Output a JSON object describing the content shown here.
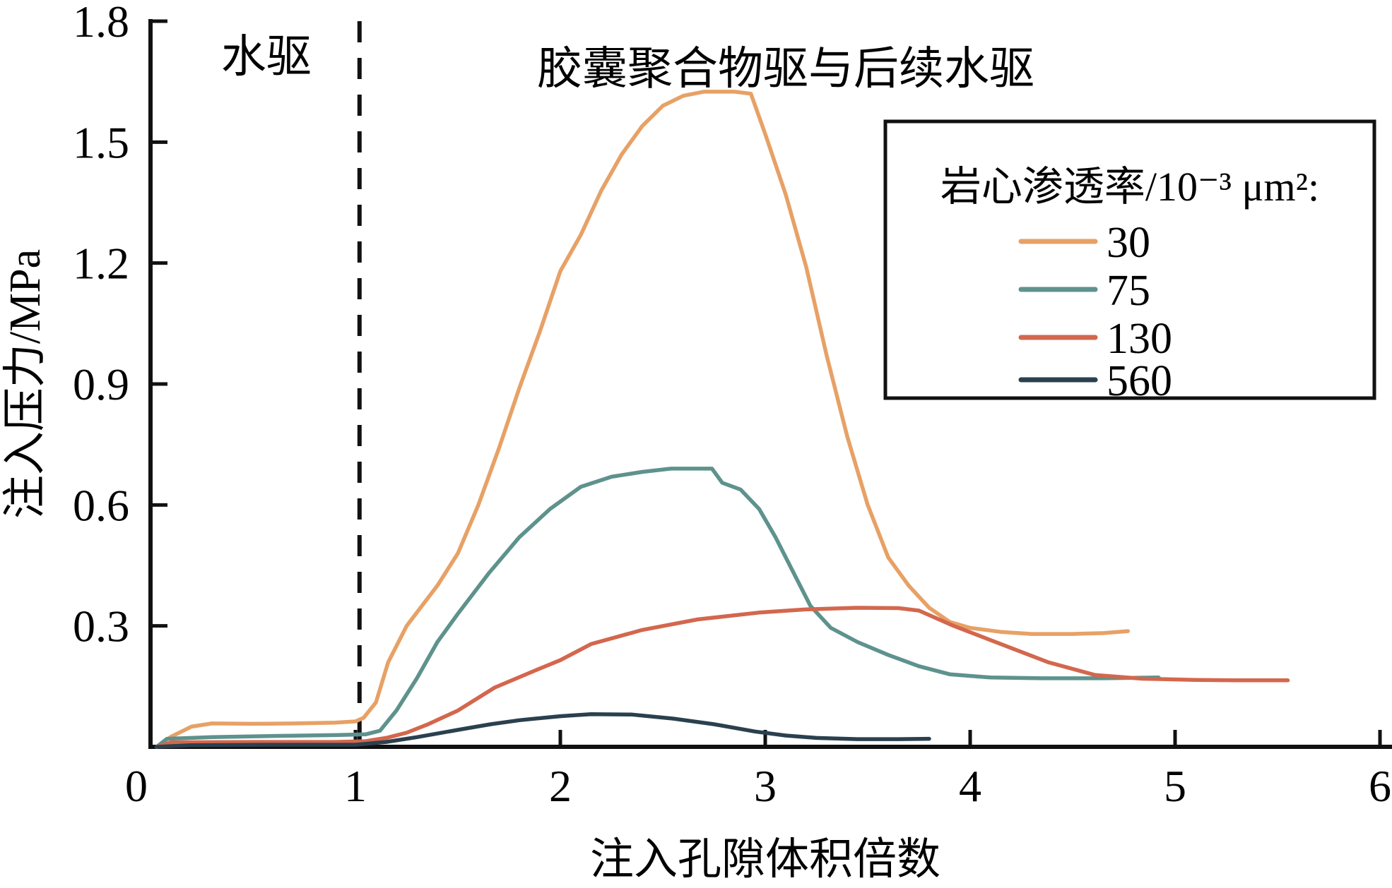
{
  "figure": {
    "background": "#ffffff",
    "axis_color": "#111111"
  },
  "chart_data": {
    "type": "line",
    "title": "",
    "xlabel": "注入孔隙体积倍数",
    "ylabel": "注入压力/MPa",
    "xlim": [
      0,
      6
    ],
    "ylim": [
      0,
      1.8
    ],
    "xticks": [
      0,
      1,
      2,
      3,
      4,
      5,
      6
    ],
    "yticks": [
      0.3,
      0.6,
      0.9,
      1.2,
      1.5,
      1.8
    ],
    "grid": false,
    "phase_divider": {
      "x": 1.02,
      "style": "dashed",
      "color": "#111111"
    },
    "annotations": [
      {
        "id": "water-drive",
        "text": "水驱",
        "x": 0.565,
        "y": 1.716
      },
      {
        "id": "polymer-drive",
        "text": "胶囊聚合物驱与后续水驱",
        "x": 3.1,
        "y": 1.686
      }
    ],
    "legend": {
      "title": "岩心渗透率/10⁻³ μm²:",
      "position": "upper right"
    },
    "series": [
      {
        "name": "30",
        "color": "#E7A166",
        "points": [
          [
            0.03,
            0
          ],
          [
            0.1,
            0.025
          ],
          [
            0.2,
            0.05
          ],
          [
            0.3,
            0.058
          ],
          [
            0.5,
            0.057
          ],
          [
            0.7,
            0.058
          ],
          [
            0.9,
            0.06
          ],
          [
            1.0,
            0.063
          ],
          [
            1.04,
            0.072
          ],
          [
            1.1,
            0.11
          ],
          [
            1.16,
            0.21
          ],
          [
            1.25,
            0.3
          ],
          [
            1.4,
            0.4
          ],
          [
            1.5,
            0.48
          ],
          [
            1.6,
            0.6
          ],
          [
            1.7,
            0.74
          ],
          [
            1.8,
            0.89
          ],
          [
            1.9,
            1.03
          ],
          [
            2.0,
            1.18
          ],
          [
            2.1,
            1.27
          ],
          [
            2.2,
            1.38
          ],
          [
            2.3,
            1.47
          ],
          [
            2.4,
            1.54
          ],
          [
            2.5,
            1.59
          ],
          [
            2.6,
            1.615
          ],
          [
            2.7,
            1.625
          ],
          [
            2.85,
            1.625
          ],
          [
            2.93,
            1.62
          ],
          [
            3.0,
            1.52
          ],
          [
            3.1,
            1.37
          ],
          [
            3.2,
            1.19
          ],
          [
            3.3,
            0.97
          ],
          [
            3.4,
            0.77
          ],
          [
            3.5,
            0.6
          ],
          [
            3.6,
            0.47
          ],
          [
            3.7,
            0.4
          ],
          [
            3.8,
            0.345
          ],
          [
            3.9,
            0.31
          ],
          [
            4.0,
            0.295
          ],
          [
            4.15,
            0.285
          ],
          [
            4.3,
            0.28
          ],
          [
            4.5,
            0.28
          ],
          [
            4.65,
            0.282
          ],
          [
            4.77,
            0.287
          ]
        ]
      },
      {
        "name": "75",
        "color": "#5E928D",
        "points": [
          [
            0.03,
            0
          ],
          [
            0.08,
            0.02
          ],
          [
            0.3,
            0.024
          ],
          [
            0.6,
            0.027
          ],
          [
            0.9,
            0.029
          ],
          [
            1.05,
            0.031
          ],
          [
            1.12,
            0.04
          ],
          [
            1.2,
            0.09
          ],
          [
            1.3,
            0.17
          ],
          [
            1.4,
            0.26
          ],
          [
            1.5,
            0.33
          ],
          [
            1.65,
            0.43
          ],
          [
            1.8,
            0.52
          ],
          [
            1.95,
            0.59
          ],
          [
            2.1,
            0.645
          ],
          [
            2.25,
            0.67
          ],
          [
            2.4,
            0.682
          ],
          [
            2.54,
            0.69
          ],
          [
            2.74,
            0.69
          ],
          [
            2.79,
            0.655
          ],
          [
            2.88,
            0.638
          ],
          [
            2.97,
            0.59
          ],
          [
            3.05,
            0.52
          ],
          [
            3.13,
            0.44
          ],
          [
            3.22,
            0.35
          ],
          [
            3.32,
            0.295
          ],
          [
            3.45,
            0.26
          ],
          [
            3.6,
            0.228
          ],
          [
            3.75,
            0.2
          ],
          [
            3.9,
            0.18
          ],
          [
            4.1,
            0.172
          ],
          [
            4.35,
            0.17
          ],
          [
            4.65,
            0.17
          ],
          [
            4.92,
            0.172
          ]
        ]
      },
      {
        "name": "130",
        "color": "#D3674D",
        "points": [
          [
            0.03,
            0
          ],
          [
            0.1,
            0.011
          ],
          [
            0.5,
            0.012
          ],
          [
            0.9,
            0.012
          ],
          [
            1.05,
            0.014
          ],
          [
            1.15,
            0.022
          ],
          [
            1.25,
            0.035
          ],
          [
            1.35,
            0.055
          ],
          [
            1.5,
            0.09
          ],
          [
            1.68,
            0.147
          ],
          [
            1.88,
            0.19
          ],
          [
            2.0,
            0.215
          ],
          [
            2.15,
            0.255
          ],
          [
            2.4,
            0.29
          ],
          [
            2.67,
            0.316
          ],
          [
            2.97,
            0.333
          ],
          [
            3.2,
            0.341
          ],
          [
            3.45,
            0.345
          ],
          [
            3.65,
            0.344
          ],
          [
            3.75,
            0.338
          ],
          [
            3.92,
            0.3
          ],
          [
            4.15,
            0.255
          ],
          [
            4.38,
            0.21
          ],
          [
            4.61,
            0.178
          ],
          [
            4.84,
            0.169
          ],
          [
            5.1,
            0.166
          ],
          [
            5.3,
            0.165
          ],
          [
            5.55,
            0.165
          ]
        ]
      },
      {
        "name": "560",
        "color": "#2B404F",
        "points": [
          [
            0.03,
            0
          ],
          [
            0.2,
            0.004
          ],
          [
            0.6,
            0.005
          ],
          [
            1.0,
            0.005
          ],
          [
            1.15,
            0.012
          ],
          [
            1.3,
            0.024
          ],
          [
            1.5,
            0.042
          ],
          [
            1.66,
            0.056
          ],
          [
            1.8,
            0.066
          ],
          [
            2.0,
            0.076
          ],
          [
            2.15,
            0.081
          ],
          [
            2.35,
            0.08
          ],
          [
            2.55,
            0.07
          ],
          [
            2.75,
            0.056
          ],
          [
            2.95,
            0.038
          ],
          [
            3.1,
            0.028
          ],
          [
            3.25,
            0.022
          ],
          [
            3.45,
            0.019
          ],
          [
            3.65,
            0.019
          ],
          [
            3.8,
            0.02
          ]
        ]
      }
    ]
  }
}
